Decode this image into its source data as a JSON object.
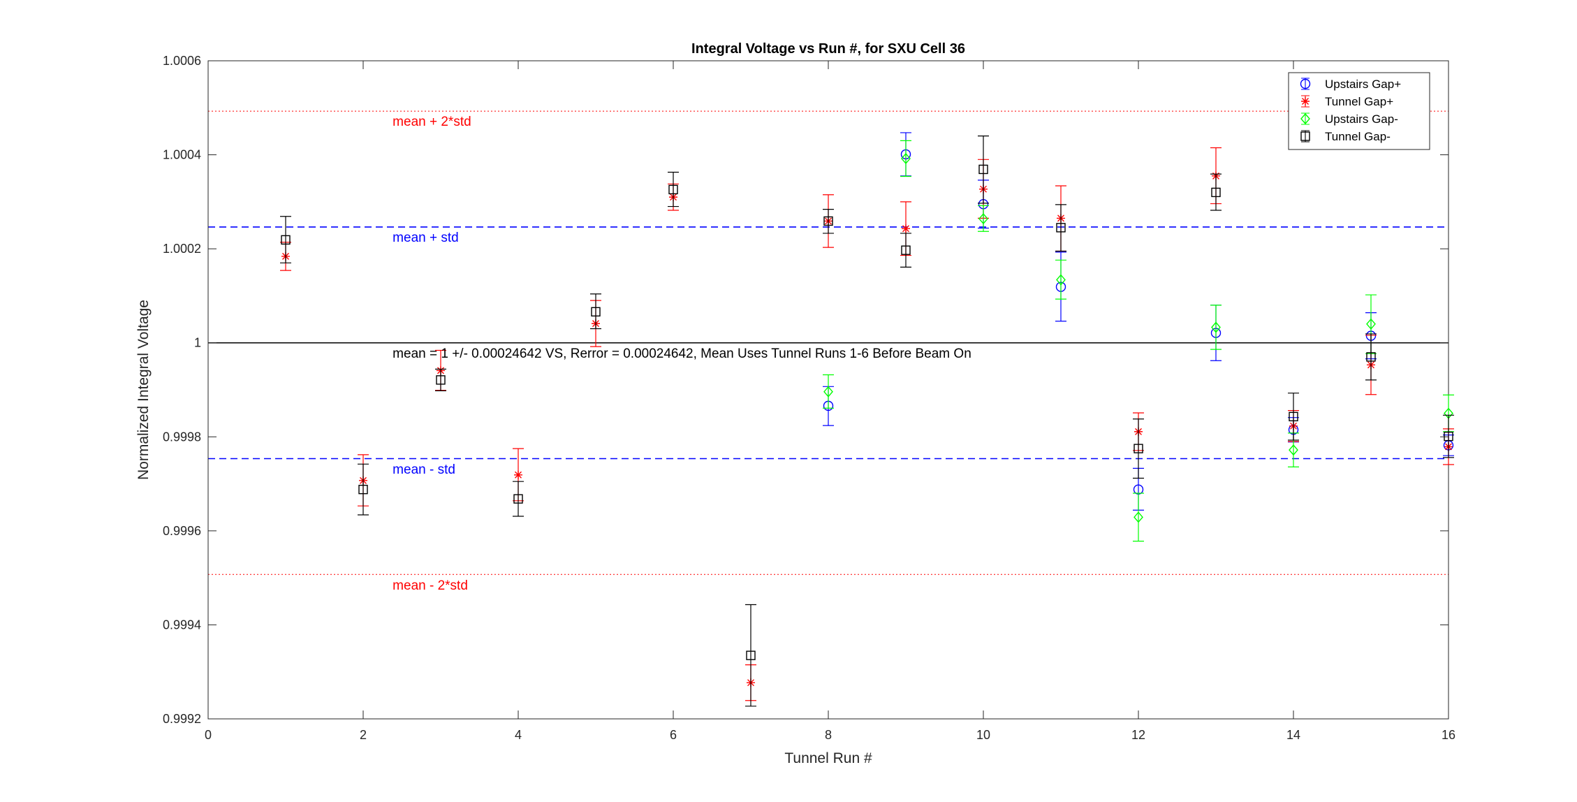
{
  "chart_data": {
    "type": "scatter",
    "title": "Integral Voltage vs Run #, for SXU Cell 36",
    "xlabel": "Tunnel Run #",
    "ylabel": "Normalized Integral Voltage",
    "xlim": [
      0,
      16
    ],
    "ylim": [
      0.9992,
      1.0006
    ],
    "xticks": [
      0,
      2,
      4,
      6,
      8,
      10,
      12,
      14,
      16
    ],
    "xtick_labels": [
      "0",
      "2",
      "4",
      "6",
      "8",
      "10",
      "12",
      "14",
      "16"
    ],
    "yticks": [
      0.9992,
      0.9994,
      0.9996,
      0.9998,
      1.0,
      1.0002,
      1.0004,
      1.0006
    ],
    "ytick_labels": [
      "0.9992",
      "0.9994",
      "0.9996",
      "0.9998",
      "1",
      "1.0002",
      "1.0004",
      "1.0006"
    ],
    "grid": false,
    "legend_position": "top-right",
    "series": [
      {
        "name": "Upstairs Gap+",
        "color": "#0000ff",
        "marker": "circle",
        "points": [
          {
            "x": 8,
            "y": 0.999866,
            "lo": 0.999824,
            "hi": 0.999907
          },
          {
            "x": 9,
            "y": 1.000401,
            "lo": 1.000355,
            "hi": 1.000447
          },
          {
            "x": 10,
            "y": 1.000295,
            "lo": 1.000244,
            "hi": 1.000346
          },
          {
            "x": 11,
            "y": 1.000119,
            "lo": 1.000046,
            "hi": 1.000193
          },
          {
            "x": 12,
            "y": 0.999688,
            "lo": 0.999644,
            "hi": 0.999733
          },
          {
            "x": 13,
            "y": 1.000021,
            "lo": 0.999962,
            "hi": 1.00008
          },
          {
            "x": 14,
            "y": 0.999815,
            "lo": 0.999789,
            "hi": 0.999841
          },
          {
            "x": 15,
            "y": 1.000015,
            "lo": 0.999966,
            "hi": 1.000064
          },
          {
            "x": 16,
            "y": 0.999782,
            "lo": 0.99976,
            "hi": 0.999804
          }
        ]
      },
      {
        "name": "Tunnel Gap+",
        "color": "#ff0000",
        "marker": "asterisk",
        "points": [
          {
            "x": 1,
            "y": 1.000184,
            "lo": 1.000154,
            "hi": 1.000214
          },
          {
            "x": 2,
            "y": 0.999707,
            "lo": 0.999653,
            "hi": 0.999762
          },
          {
            "x": 3,
            "y": 0.999941,
            "lo": 0.999899,
            "hi": 0.999984
          },
          {
            "x": 4,
            "y": 0.999719,
            "lo": 0.999664,
            "hi": 0.999775
          },
          {
            "x": 5,
            "y": 1.000041,
            "lo": 0.999992,
            "hi": 1.00009
          },
          {
            "x": 6,
            "y": 1.00031,
            "lo": 1.000282,
            "hi": 1.000338
          },
          {
            "x": 7,
            "y": 0.999277,
            "lo": 0.999239,
            "hi": 0.999315
          },
          {
            "x": 8,
            "y": 1.000259,
            "lo": 1.000203,
            "hi": 1.000315
          },
          {
            "x": 9,
            "y": 1.000243,
            "lo": 1.000186,
            "hi": 1.0003
          },
          {
            "x": 10,
            "y": 1.000327,
            "lo": 1.000265,
            "hi": 1.00039
          },
          {
            "x": 11,
            "y": 1.000265,
            "lo": 1.000195,
            "hi": 1.000334
          },
          {
            "x": 12,
            "y": 0.999811,
            "lo": 0.999771,
            "hi": 0.999851
          },
          {
            "x": 13,
            "y": 1.000355,
            "lo": 1.000296,
            "hi": 1.000415
          },
          {
            "x": 14,
            "y": 0.999823,
            "lo": 0.99979,
            "hi": 0.999856
          },
          {
            "x": 15,
            "y": 0.999953,
            "lo": 0.99989,
            "hi": 1.000016
          },
          {
            "x": 16,
            "y": 0.999779,
            "lo": 0.999741,
            "hi": 0.999817
          }
        ]
      },
      {
        "name": "Upstairs Gap-",
        "color": "#00ff00",
        "marker": "diamond",
        "points": [
          {
            "x": 8,
            "y": 0.999896,
            "lo": 0.999861,
            "hi": 0.999932
          },
          {
            "x": 9,
            "y": 1.000392,
            "lo": 1.000354,
            "hi": 1.00043
          },
          {
            "x": 10,
            "y": 1.000264,
            "lo": 1.000237,
            "hi": 1.000292
          },
          {
            "x": 11,
            "y": 1.000134,
            "lo": 1.000093,
            "hi": 1.000176
          },
          {
            "x": 12,
            "y": 0.999629,
            "lo": 0.999578,
            "hi": 0.99968
          },
          {
            "x": 13,
            "y": 1.000033,
            "lo": 0.999986,
            "hi": 1.00008
          },
          {
            "x": 14,
            "y": 0.999772,
            "lo": 0.999736,
            "hi": 0.999808
          },
          {
            "x": 15,
            "y": 1.00004,
            "lo": 0.999977,
            "hi": 1.000102
          },
          {
            "x": 16,
            "y": 0.99985,
            "lo": 0.999811,
            "hi": 0.999889
          }
        ]
      },
      {
        "name": "Tunnel Gap-",
        "color": "#000000",
        "marker": "square",
        "points": [
          {
            "x": 1,
            "y": 1.000219,
            "lo": 1.00017,
            "hi": 1.000269
          },
          {
            "x": 2,
            "y": 0.999688,
            "lo": 0.999634,
            "hi": 0.999742
          },
          {
            "x": 3,
            "y": 0.999921,
            "lo": 0.999898,
            "hi": 0.999944
          },
          {
            "x": 4,
            "y": 0.999668,
            "lo": 0.999631,
            "hi": 0.999705
          },
          {
            "x": 5,
            "y": 1.000066,
            "lo": 1.00003,
            "hi": 1.000104
          },
          {
            "x": 6,
            "y": 1.000326,
            "lo": 1.00029,
            "hi": 1.000363
          },
          {
            "x": 7,
            "y": 0.999335,
            "lo": 0.999227,
            "hi": 0.999443
          },
          {
            "x": 8,
            "y": 1.000259,
            "lo": 1.000233,
            "hi": 1.000284
          },
          {
            "x": 9,
            "y": 1.000197,
            "lo": 1.000161,
            "hi": 1.000233
          },
          {
            "x": 10,
            "y": 1.000369,
            "lo": 1.000297,
            "hi": 1.00044
          },
          {
            "x": 11,
            "y": 1.000245,
            "lo": 1.000195,
            "hi": 1.000294
          },
          {
            "x": 12,
            "y": 0.999775,
            "lo": 0.999712,
            "hi": 0.999838
          },
          {
            "x": 13,
            "y": 1.00032,
            "lo": 1.000282,
            "hi": 1.000359
          },
          {
            "x": 14,
            "y": 0.999843,
            "lo": 0.999793,
            "hi": 0.999893
          },
          {
            "x": 15,
            "y": 0.99997,
            "lo": 0.999921,
            "hi": 1.000019
          },
          {
            "x": 16,
            "y": 0.999801,
            "lo": 0.999756,
            "hi": 0.999846
          }
        ]
      }
    ],
    "reference_lines": [
      {
        "y": 1.0004928,
        "style": "dotted",
        "color": "#ff0000"
      },
      {
        "y": 1.0002464,
        "style": "dashed",
        "color": "#0000ff"
      },
      {
        "y": 1.0,
        "style": "solid",
        "color": "#000000"
      },
      {
        "y": 0.9997536,
        "style": "dashed",
        "color": "#0000ff"
      },
      {
        "y": 0.9995072,
        "style": "dotted",
        "color": "#ff0000"
      }
    ],
    "annotations": [
      {
        "text": "mean + 2*std",
        "x": 2.38,
        "y": 1.000462,
        "color": "#ff0000"
      },
      {
        "text": "mean + std",
        "x": 2.38,
        "y": 1.000215,
        "color": "#0000ff"
      },
      {
        "text": "mean = 1 +/- 0.00024642 VS, Rerror = 0.00024642, Mean Uses Tunnel Runs 1-6 Before Beam On",
        "x": 2.38,
        "y": 0.999968,
        "color": "#000000"
      },
      {
        "text": "mean - std",
        "x": 2.38,
        "y": 0.999722,
        "color": "#0000ff"
      },
      {
        "text": "mean - 2*std",
        "x": 2.38,
        "y": 0.999475,
        "color": "#ff0000"
      }
    ]
  }
}
